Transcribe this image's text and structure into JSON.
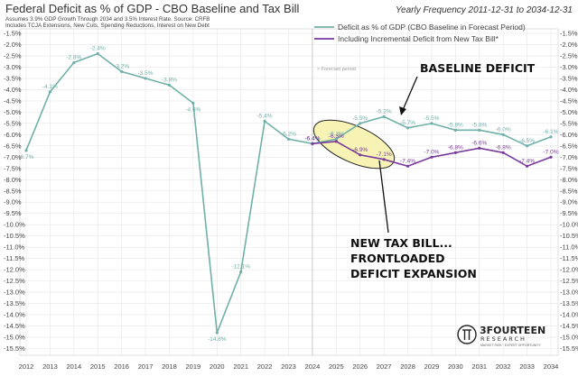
{
  "header": {
    "title": "Federal Deficit as % of GDP - CBO Baseline and Tax Bill",
    "frequency": "Yearly Frequency 2011-12-31 to 2034-12-31",
    "subtitle_1": "Assumes 3.9% GDP Growth Through 2034 and 3.5% Interest Rate. Source: CRFB",
    "subtitle_2": "Includes TCJA Extensions, New Cuts, Spending Reductions, Interest on New Debt"
  },
  "legend": {
    "baseline_label": "Deficit as % of GDP (CBO Baseline in Forecast Period)",
    "taxbill_label": "Including Incremental Deficit from New Tax Bill*"
  },
  "annotations": {
    "forecast_period": "> Forecast period",
    "baseline_deficit": "BASELINE DEFICIT",
    "tax_bill_line1": "NEW TAX BILL...",
    "tax_bill_line2": "FRONTLOADED",
    "tax_bill_line3": "DEFICIT EXPANSION"
  },
  "logo": {
    "name": "3FOURTEEN",
    "sub": "RESEARCH",
    "tagline": "MARKET RISK · EXPERT OPPORTUNITY"
  },
  "colors": {
    "baseline": "#6fb0a8",
    "taxbill": "#7a3a9c",
    "highlight_fill": "#f6f3b4",
    "grid": "#e6e6e6"
  },
  "chart_data": {
    "type": "line",
    "title": "Federal Deficit as % of GDP - CBO Baseline and Tax Bill",
    "xlabel": "",
    "ylabel": "",
    "x": [
      2012,
      2013,
      2014,
      2015,
      2016,
      2017,
      2018,
      2019,
      2020,
      2021,
      2022,
      2023,
      2024,
      2025,
      2026,
      2027,
      2028,
      2029,
      2030,
      2031,
      2032,
      2033,
      2034
    ],
    "x_tick_labels": [
      "2012",
      "2013",
      "2014",
      "2015",
      "2016",
      "2017",
      "2018",
      "2019",
      "2020",
      "2021",
      "2022",
      "2023",
      "2024",
      "2025",
      "2026",
      "2027",
      "2028",
      "2029",
      "2030",
      "2031",
      "2032",
      "2033",
      "2034"
    ],
    "ylim": [
      -15.8,
      -1.3
    ],
    "y_ticks": [
      -1.5,
      -2.0,
      -2.5,
      -3.0,
      -3.5,
      -4.0,
      -4.5,
      -5.0,
      -5.5,
      -6.0,
      -6.5,
      -7.0,
      -7.5,
      -8.0,
      -8.5,
      -9.0,
      -9.5,
      -10.0,
      -10.5,
      -11.0,
      -11.5,
      -12.0,
      -12.5,
      -13.0,
      -13.5,
      -14.0,
      -14.5,
      -15.0,
      -15.5
    ],
    "y_tick_labels": [
      "-1.5%",
      "-2.0%",
      "-2.5%",
      "-3.0%",
      "-3.5%",
      "-4.0%",
      "-4.5%",
      "-5.0%",
      "-5.5%",
      "-6.0%",
      "-6.5%",
      "-7.0%",
      "-7.5%",
      "-8.0%",
      "-8.5%",
      "-9.0%",
      "-9.5%",
      "-10.0%",
      "-10.5%",
      "-11.0%",
      "-11.5%",
      "-12.0%",
      "-12.5%",
      "-13.0%",
      "-13.5%",
      "-14.0%",
      "-14.5%",
      "-15.0%",
      "-15.5%"
    ],
    "forecast_start": 2024,
    "series": [
      {
        "name": "Deficit as % of GDP (CBO Baseline in Forecast Period)",
        "x": [
          2012,
          2013,
          2014,
          2015,
          2016,
          2017,
          2018,
          2019,
          2020,
          2021,
          2022,
          2023,
          2024,
          2025,
          2026,
          2027,
          2028,
          2029,
          2030,
          2031,
          2032,
          2033,
          2034
        ],
        "values": [
          -6.7,
          -4.1,
          -2.8,
          -2.4,
          -3.2,
          -3.5,
          -3.8,
          -4.6,
          -14.8,
          -12.1,
          -5.4,
          -6.2,
          -6.4,
          -6.2,
          -5.5,
          -5.2,
          -5.7,
          -5.5,
          -5.8,
          -5.8,
          -6.0,
          -6.5,
          -6.1
        ],
        "labels": [
          "-6.7%",
          "-4.1%",
          "-2.8%",
          "-2.4%",
          "-3.2%",
          "-3.5%",
          "-3.8%",
          "-4.6%",
          "-14.8%",
          "-12.1%",
          "-5.4%",
          "-6.2%",
          "-6.4%",
          "-6.2%",
          "-5.5%",
          "-5.2%",
          "-5.7%",
          "-5.5%",
          "-5.8%",
          "-5.8%",
          "-6.0%",
          "-6.5%",
          "-6.1%"
        ],
        "label_offset": [
          "below",
          "above",
          "above",
          "above",
          "above",
          "above",
          "above",
          "below",
          "below",
          "above",
          "above",
          "above",
          "above",
          "above",
          "above",
          "above",
          "above",
          "above",
          "above",
          "above",
          "above",
          "above",
          "above"
        ]
      },
      {
        "name": "Including Incremental Deficit from New Tax Bill*",
        "x": [
          2024,
          2025,
          2026,
          2027,
          2028,
          2029,
          2030,
          2031,
          2032,
          2033,
          2034
        ],
        "values": [
          -6.4,
          -6.3,
          -6.9,
          -7.1,
          -7.4,
          -7.0,
          -6.8,
          -6.6,
          -6.8,
          -7.4,
          -7.0
        ],
        "labels": [
          "-6.4%",
          "-6.3%",
          "-6.9%",
          "-7.1%",
          "-7.4%",
          "-7.0%",
          "-6.8%",
          "-6.6%",
          "-6.8%",
          "-7.4%",
          "-7.0%"
        ],
        "label_offset": [
          "above",
          "above",
          "above",
          "above",
          "above",
          "above",
          "above",
          "above",
          "above",
          "above",
          "above"
        ]
      }
    ]
  }
}
